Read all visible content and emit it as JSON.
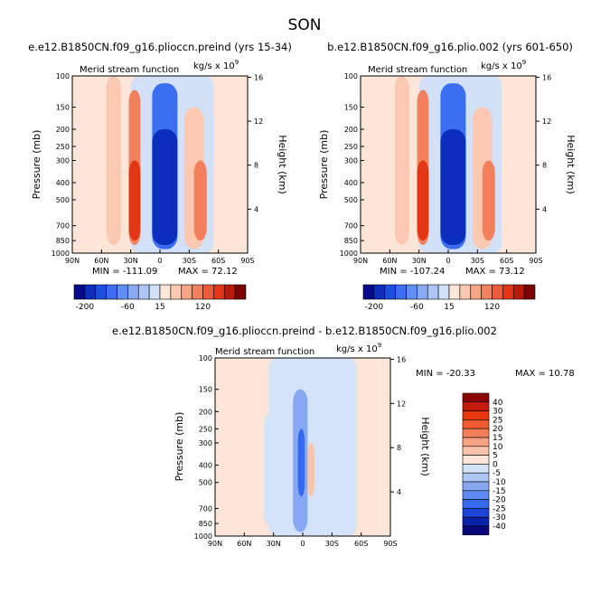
{
  "page_title": "SON",
  "panels": [
    {
      "title": "e.e12.B1850CN.f09_g16.plioccn.preind (yrs 15-34)",
      "subtitle": "Merid stream function",
      "units": "kg/s x 10",
      "units_exp": "9",
      "min_label": "MIN = -111.09",
      "max_label": "MAX = 72.12"
    },
    {
      "title": "b.e12.B1850CN.f09_g16.plio.002 (yrs 601-650)",
      "subtitle": "Merid stream function",
      "units": "kg/s x 10",
      "units_exp": "9",
      "min_label": "MIN = -107.24",
      "max_label": "MAX = 73.12"
    },
    {
      "title": "e.e12.B1850CN.f09_g16.plioccn.preind - b.e12.B1850CN.f09_g16.plio.002",
      "subtitle": "Merid stream function",
      "units": "kg/s x 10",
      "units_exp": "9",
      "min_label": "MIN = -20.33",
      "max_label": "MAX = 10.78"
    }
  ],
  "axes": {
    "ylabel": "Pressure (mb)",
    "y2label": "Height (km)",
    "x_ticks": [
      "90N",
      "60N",
      "30N",
      "0",
      "30S",
      "60S",
      "90S"
    ],
    "p_ticks": [
      "100",
      "150",
      "200",
      "250",
      "300",
      "400",
      "500",
      "700",
      "850",
      "1000"
    ],
    "p_values": [
      100,
      150,
      200,
      250,
      300,
      400,
      500,
      700,
      850,
      1000
    ],
    "h_ticks": [
      "16",
      "12",
      "8",
      "4"
    ],
    "h_values": [
      16,
      12,
      8,
      4
    ]
  },
  "colorbar_top": {
    "labels": [
      "-200",
      "-60",
      "15",
      "120"
    ],
    "colors": [
      "#08088a",
      "#0c2ebf",
      "#1a4fe0",
      "#3b6ff0",
      "#5f8ff0",
      "#87aaf3",
      "#adc6f5",
      "#d2e1f8",
      "#fde6d8",
      "#fbc9b1",
      "#f7a585",
      "#f3805d",
      "#ef5a38",
      "#e23614",
      "#b81b0a",
      "#7a0404"
    ]
  },
  "colorbar_diff": {
    "labels": [
      "40",
      "30",
      "25",
      "20",
      "15",
      "10",
      "5",
      "0",
      "-5",
      "-10",
      "-15",
      "-20",
      "-25",
      "-30",
      "-40"
    ],
    "colors": [
      "#8a0404",
      "#c41c08",
      "#e8380f",
      "#f25a30",
      "#f4805a",
      "#f6a283",
      "#f9c4aa",
      "#fde6d7",
      "#d5e3f8",
      "#adc6f6",
      "#87a8f3",
      "#5c8af0",
      "#356aee",
      "#1945d8",
      "#0b22a8",
      "#08087a"
    ]
  },
  "chart_data": [
    {
      "type": "heatmap",
      "title": "e.e12.B1850CN.f09_g16.plioccn.preind (yrs 15-34)",
      "subtitle": "Merid stream function",
      "xlabel": "",
      "ylabel": "Pressure (mb)",
      "y2label": "Height (km)",
      "x_range": [
        90,
        -90
      ],
      "y_range": [
        1000,
        100
      ],
      "y_scale": "log",
      "min": -111.09,
      "max": 72.12,
      "cells": [
        {
          "lat": [
            55,
            40
          ],
          "p": [
            80,
            900
          ],
          "value": 15
        },
        {
          "lat": [
            32,
            20
          ],
          "p": [
            120,
            900
          ],
          "value": 30
        },
        {
          "lat": [
            32,
            20
          ],
          "p": [
            300,
            850
          ],
          "value": 60
        },
        {
          "lat": [
            8,
            -18
          ],
          "p": [
            110,
            950
          ],
          "value": -60
        },
        {
          "lat": [
            8,
            -18
          ],
          "p": [
            200,
            900
          ],
          "value": -100
        },
        {
          "lat": [
            -25,
            -45
          ],
          "p": [
            150,
            950
          ],
          "value": 15
        },
        {
          "lat": [
            -35,
            -48
          ],
          "p": [
            300,
            850
          ],
          "value": 30
        }
      ]
    },
    {
      "type": "heatmap",
      "title": "b.e12.B1850CN.f09_g16.plio.002 (yrs 601-650)",
      "subtitle": "Merid stream function",
      "xlabel": "",
      "ylabel": "Pressure (mb)",
      "y2label": "Height (km)",
      "x_range": [
        90,
        -90
      ],
      "y_range": [
        1000,
        100
      ],
      "y_scale": "log",
      "min": -107.24,
      "max": 73.12,
      "cells": [
        {
          "lat": [
            55,
            40
          ],
          "p": [
            80,
            900
          ],
          "value": 15
        },
        {
          "lat": [
            32,
            20
          ],
          "p": [
            120,
            900
          ],
          "value": 30
        },
        {
          "lat": [
            32,
            20
          ],
          "p": [
            300,
            850
          ],
          "value": 60
        },
        {
          "lat": [
            8,
            -18
          ],
          "p": [
            110,
            950
          ],
          "value": -60
        },
        {
          "lat": [
            8,
            -18
          ],
          "p": [
            200,
            900
          ],
          "value": -100
        },
        {
          "lat": [
            -25,
            -45
          ],
          "p": [
            150,
            950
          ],
          "value": 15
        },
        {
          "lat": [
            -35,
            -48
          ],
          "p": [
            300,
            850
          ],
          "value": 30
        }
      ]
    },
    {
      "type": "heatmap",
      "title": "e.e12.B1850CN.f09_g16.plioccn.preind - b.e12.B1850CN.f09_g16.plio.002",
      "subtitle": "Merid stream function",
      "xlabel": "",
      "ylabel": "Pressure (mb)",
      "y2label": "Height (km)",
      "x_range": [
        90,
        -90
      ],
      "y_range": [
        1000,
        100
      ],
      "y_scale": "log",
      "min": -20.33,
      "max": 10.78,
      "cells": [
        {
          "lat": [
            40,
            20
          ],
          "p": [
            200,
            900
          ],
          "value": -5
        },
        {
          "lat": [
            10,
            -5
          ],
          "p": [
            150,
            950
          ],
          "value": -10
        },
        {
          "lat": [
            5,
            -2
          ],
          "p": [
            250,
            600
          ],
          "value": -15
        },
        {
          "lat": [
            -5,
            -12
          ],
          "p": [
            300,
            600
          ],
          "value": 5
        },
        {
          "lat": [
            -15,
            -35
          ],
          "p": [
            250,
            950
          ],
          "value": -5
        },
        {
          "lat": [
            -40,
            -55
          ],
          "p": [
            100,
            950
          ],
          "value": -5
        }
      ]
    }
  ]
}
